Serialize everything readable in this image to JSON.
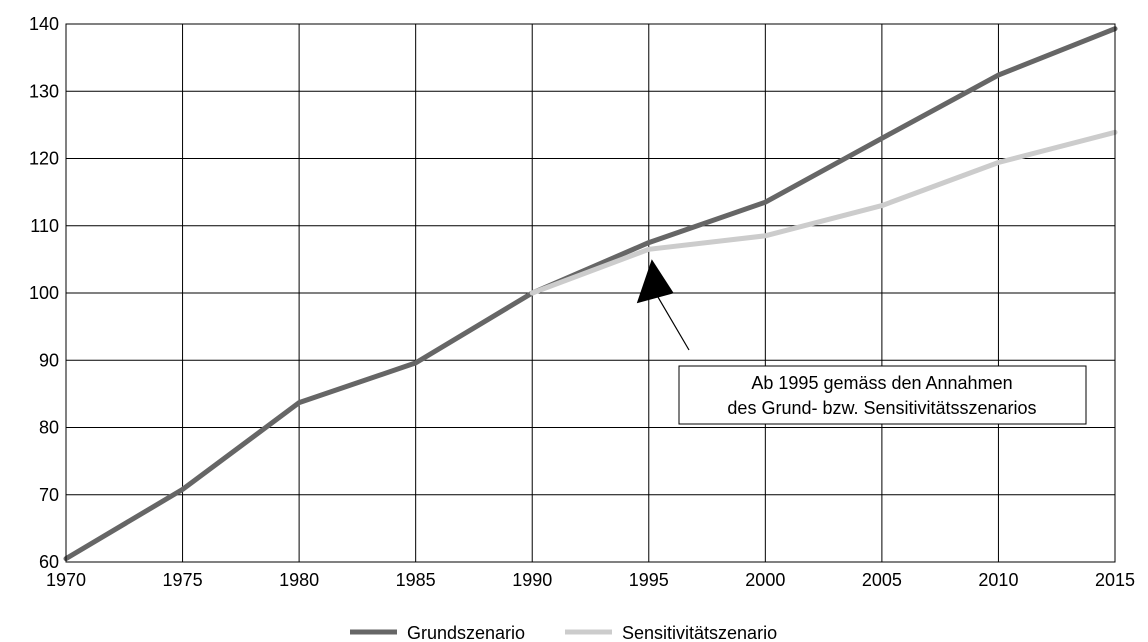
{
  "chart_data": {
    "type": "line",
    "x": [
      1970,
      1975,
      1980,
      1985,
      1990,
      1995,
      2000,
      2005,
      2010,
      2015
    ],
    "xlim": [
      1970,
      2015
    ],
    "ylim": [
      60,
      140
    ],
    "xticks": [
      "1970",
      "1975",
      "1980",
      "1985",
      "1990",
      "1995",
      "2000",
      "2005",
      "2010",
      "2015"
    ],
    "yticks": [
      "60",
      "70",
      "80",
      "90",
      "100",
      "110",
      "120",
      "130",
      "140"
    ],
    "grid": true,
    "legend_position": "bottom-center",
    "series": [
      {
        "name": "Grundszenario",
        "color": "#666666",
        "values": [
          60.5,
          70.8,
          83.7,
          89.6,
          100.0,
          107.5,
          113.5,
          123.0,
          132.4,
          139.3
        ]
      },
      {
        "name": "Sensitivitätszenario",
        "color": "#cccccc",
        "values": [
          null,
          null,
          null,
          null,
          100.0,
          106.5,
          108.5,
          113.0,
          119.4,
          123.9
        ]
      }
    ],
    "annotation": {
      "lines": [
        "Ab 1995 gemäss den Annahmen",
        "des Grund- bzw. Sensitivitätsszenarios"
      ],
      "target_x": 1995,
      "target_y": 106.5
    }
  }
}
